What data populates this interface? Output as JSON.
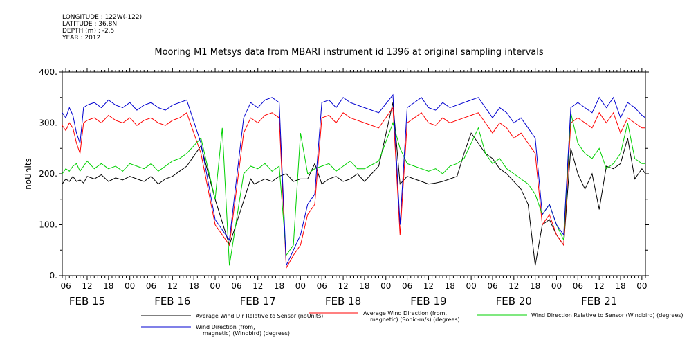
{
  "meta": {
    "longitude": "LONGITUDE : 122W(-122)",
    "latitude": "LATITUDE : 36.8N",
    "depth": "DEPTH (m) : -2.5",
    "year": "YEAR : 2012"
  },
  "chart_data": {
    "type": "line",
    "title": "Mooring M1 Metsys data from MBARI instrument id 1396 at original sampling intervals",
    "ylabel": "noUnits",
    "ylim": [
      0,
      400
    ],
    "yticks": [
      0,
      100,
      200,
      300,
      400
    ],
    "yticklabels": [
      "0.",
      "100.",
      "200.",
      "300.",
      "400."
    ],
    "xlim": [
      5,
      169
    ],
    "hour_ticks": [
      "06",
      "12",
      "18",
      "00",
      "06",
      "12",
      "18",
      "00",
      "06",
      "12",
      "18",
      "00",
      "06",
      "12",
      "18",
      "00",
      "06",
      "12",
      "18",
      "00",
      "06",
      "12",
      "18",
      "00",
      "06",
      "12",
      "18",
      "00"
    ],
    "date_labels": [
      "FEB 15",
      "FEB 16",
      "FEB 17",
      "FEB 18",
      "FEB 19",
      "FEB 20",
      "FEB 21"
    ],
    "grid": false,
    "legend_position": "bottom",
    "series": [
      {
        "name": "Average Wind Dir Relative to Sensor (noUnits)",
        "color": "#000000",
        "x": [
          5,
          6,
          7,
          8,
          9,
          10,
          11,
          12,
          14,
          16,
          18,
          20,
          22,
          24,
          26,
          28,
          30,
          32,
          34,
          36,
          38,
          40,
          44,
          48,
          52,
          58,
          59,
          62,
          64,
          66,
          68,
          70,
          72,
          74,
          76,
          78,
          80,
          82,
          84,
          86,
          88,
          90,
          94,
          98,
          100,
          102,
          104,
          106,
          108,
          110,
          112,
          114,
          116,
          118,
          120,
          122,
          124,
          126,
          128,
          130,
          132,
          134,
          136,
          138,
          140,
          142,
          144,
          146,
          148,
          150,
          152,
          154,
          156,
          158,
          160,
          162,
          164,
          166,
          168,
          169
        ],
        "y": [
          180,
          190,
          185,
          195,
          185,
          188,
          182,
          195,
          190,
          198,
          185,
          192,
          188,
          195,
          190,
          185,
          195,
          180,
          190,
          195,
          205,
          215,
          255,
          150,
          60,
          190,
          180,
          190,
          185,
          195,
          200,
          185,
          190,
          190,
          220,
          180,
          190,
          195,
          185,
          190,
          200,
          185,
          215,
          340,
          180,
          195,
          190,
          185,
          180,
          182,
          185,
          190,
          195,
          240,
          280,
          260,
          240,
          230,
          210,
          200,
          185,
          170,
          140,
          20,
          100,
          110,
          80,
          60,
          250,
          200,
          170,
          200,
          130,
          215,
          210,
          220,
          270,
          190,
          210,
          200
        ]
      },
      {
        "name": "Average Wind Direction (from, magnetic) (Sonic-m/s) (degrees)",
        "color": "#ff0000",
        "x": [
          5,
          6,
          7,
          8,
          9,
          10,
          11,
          12,
          14,
          16,
          18,
          20,
          22,
          24,
          26,
          28,
          30,
          32,
          34,
          36,
          38,
          40,
          44,
          48,
          50,
          52,
          56,
          58,
          60,
          62,
          64,
          66,
          68,
          70,
          72,
          74,
          76,
          78,
          80,
          82,
          84,
          86,
          88,
          90,
          94,
          98,
          100,
          102,
          104,
          106,
          108,
          110,
          112,
          114,
          116,
          118,
          120,
          122,
          124,
          126,
          128,
          130,
          132,
          134,
          136,
          138,
          140,
          142,
          144,
          146,
          148,
          150,
          152,
          154,
          156,
          158,
          160,
          162,
          164,
          166,
          168,
          169
        ],
        "y": [
          295,
          285,
          300,
          290,
          260,
          240,
          300,
          305,
          310,
          300,
          315,
          305,
          300,
          310,
          295,
          305,
          310,
          300,
          295,
          305,
          310,
          320,
          240,
          100,
          80,
          60,
          280,
          310,
          300,
          315,
          320,
          310,
          15,
          40,
          60,
          120,
          140,
          310,
          315,
          300,
          320,
          310,
          305,
          300,
          290,
          330,
          80,
          300,
          310,
          320,
          300,
          295,
          310,
          300,
          305,
          310,
          315,
          320,
          300,
          280,
          300,
          290,
          270,
          280,
          260,
          240,
          100,
          120,
          80,
          60,
          300,
          310,
          300,
          290,
          320,
          300,
          320,
          280,
          310,
          300,
          290,
          290
        ]
      },
      {
        "name": "Wind Direction Relative to Sensor (Windbird) (degrees)",
        "color": "#00d000",
        "x": [
          5,
          6,
          7,
          8,
          9,
          10,
          11,
          12,
          14,
          16,
          18,
          20,
          22,
          24,
          26,
          28,
          30,
          32,
          34,
          36,
          38,
          40,
          44,
          48,
          50,
          52,
          56,
          58,
          60,
          62,
          64,
          66,
          68,
          70,
          72,
          74,
          76,
          78,
          80,
          82,
          84,
          86,
          88,
          90,
          94,
          98,
          100,
          102,
          104,
          106,
          108,
          110,
          112,
          114,
          116,
          118,
          120,
          122,
          124,
          126,
          128,
          130,
          132,
          134,
          136,
          138,
          140,
          142,
          144,
          146,
          148,
          150,
          152,
          154,
          156,
          158,
          160,
          162,
          164,
          166,
          168,
          169
        ],
        "y": [
          200,
          210,
          205,
          215,
          220,
          205,
          215,
          225,
          210,
          220,
          210,
          215,
          205,
          220,
          215,
          210,
          220,
          205,
          215,
          225,
          230,
          240,
          270,
          150,
          290,
          20,
          200,
          215,
          210,
          220,
          205,
          215,
          40,
          60,
          280,
          200,
          210,
          215,
          220,
          205,
          215,
          225,
          210,
          210,
          225,
          300,
          250,
          220,
          215,
          210,
          205,
          210,
          200,
          215,
          220,
          230,
          260,
          290,
          240,
          220,
          230,
          210,
          200,
          190,
          180,
          160,
          120,
          140,
          100,
          70,
          320,
          260,
          240,
          230,
          250,
          210,
          220,
          240,
          300,
          230,
          220,
          220
        ]
      },
      {
        "name": "Wind Direction (from, magnetic) (Windbird) (degrees)",
        "color": "#0000d0",
        "x": [
          5,
          6,
          7,
          8,
          9,
          10,
          11,
          12,
          14,
          16,
          18,
          20,
          22,
          24,
          26,
          28,
          30,
          32,
          34,
          36,
          38,
          40,
          44,
          48,
          50,
          52,
          56,
          58,
          60,
          62,
          64,
          66,
          68,
          70,
          72,
          74,
          76,
          78,
          80,
          82,
          84,
          86,
          88,
          90,
          94,
          98,
          100,
          102,
          104,
          106,
          108,
          110,
          112,
          114,
          116,
          118,
          120,
          122,
          124,
          126,
          128,
          130,
          132,
          134,
          136,
          138,
          140,
          142,
          144,
          146,
          148,
          150,
          152,
          154,
          156,
          158,
          160,
          162,
          164,
          166,
          168,
          169
        ],
        "y": [
          320,
          310,
          330,
          315,
          280,
          260,
          330,
          335,
          340,
          330,
          345,
          335,
          330,
          340,
          325,
          335,
          340,
          330,
          325,
          335,
          340,
          345,
          260,
          110,
          90,
          70,
          310,
          340,
          330,
          345,
          350,
          340,
          20,
          50,
          80,
          140,
          160,
          340,
          345,
          330,
          350,
          340,
          335,
          330,
          320,
          355,
          100,
          330,
          340,
          350,
          330,
          325,
          340,
          330,
          335,
          340,
          345,
          350,
          330,
          310,
          330,
          320,
          300,
          310,
          290,
          270,
          120,
          140,
          100,
          80,
          330,
          340,
          330,
          320,
          350,
          330,
          350,
          310,
          340,
          330,
          315,
          310
        ]
      }
    ]
  }
}
